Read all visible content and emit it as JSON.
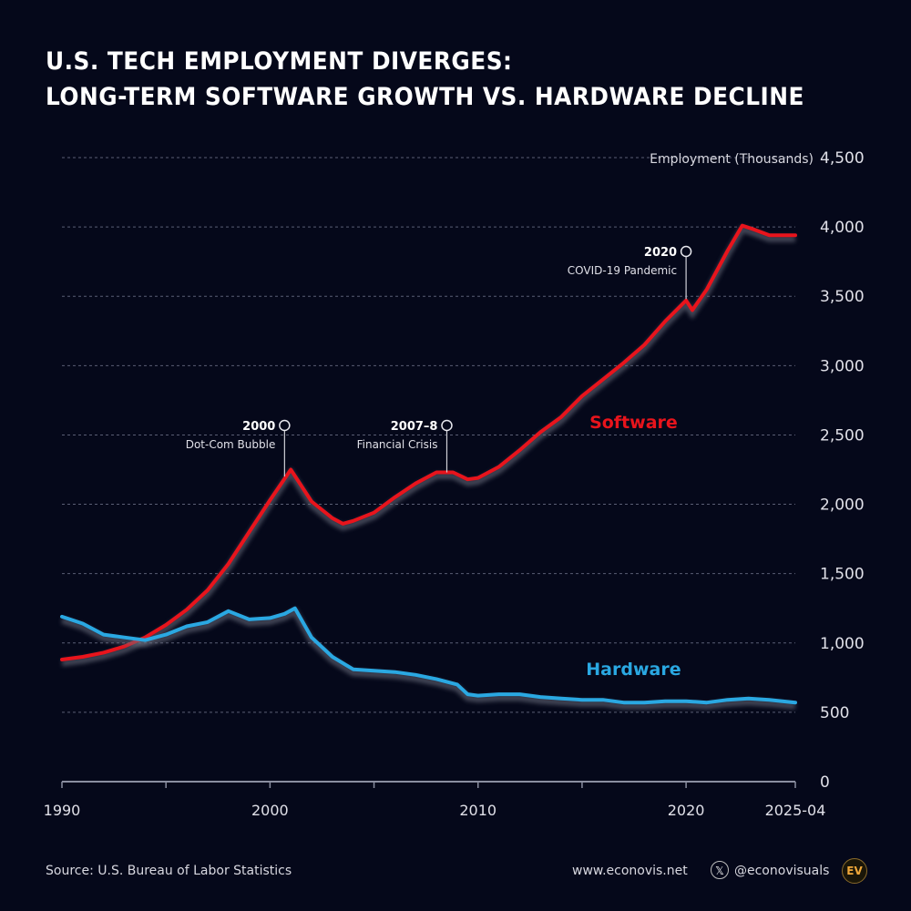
{
  "title_lines": [
    "U.S. TECH EMPLOYMENT DIVERGES:",
    "LONG-TERM SOFTWARE GROWTH VS. HARDWARE DECLINE"
  ],
  "footer": {
    "source": "Source: U.S. Bureau of Labor Statistics",
    "website": "www.econovis.net",
    "x_handle": "@econovisuals",
    "x_icon": "x-logo-icon",
    "logo_text": "EV"
  },
  "chart_data": {
    "type": "line",
    "title": "U.S. Tech Employment Diverges: Long-Term Software Growth vs. Hardware Decline",
    "xlabel": "",
    "ylabel": "Employment (Thousands)",
    "ylim": [
      0,
      4500
    ],
    "xlim": [
      1990,
      2025.25
    ],
    "y_ticks": [
      0,
      500,
      1000,
      1500,
      2000,
      2500,
      3000,
      3500,
      4000,
      4500
    ],
    "y_tick_labels": [
      "0",
      "500",
      "1,000",
      "1,500",
      "2,000",
      "2,500",
      "3,000",
      "3,500",
      "4,000",
      "4,500"
    ],
    "x_ticks": [
      1990,
      1995,
      2000,
      2005,
      2010,
      2015,
      2020,
      2025.25
    ],
    "x_tick_labels": [
      {
        "x": 1990,
        "label": "1990"
      },
      {
        "x": 2000,
        "label": "2000"
      },
      {
        "x": 2010,
        "label": "2010"
      },
      {
        "x": 2020,
        "label": "2020"
      },
      {
        "x": 2025.25,
        "label": "2025-04"
      }
    ],
    "grid": true,
    "series": [
      {
        "name": "Software",
        "color": "#e8141c",
        "points": [
          [
            1990,
            880
          ],
          [
            1991,
            900
          ],
          [
            1992,
            930
          ],
          [
            1993,
            975
          ],
          [
            1994,
            1040
          ],
          [
            1995,
            1130
          ],
          [
            1996,
            1240
          ],
          [
            1997,
            1380
          ],
          [
            1998,
            1570
          ],
          [
            1999,
            1800
          ],
          [
            2000,
            2030
          ],
          [
            2001,
            2250
          ],
          [
            2002,
            2020
          ],
          [
            2003,
            1900
          ],
          [
            2003.5,
            1860
          ],
          [
            2004,
            1880
          ],
          [
            2005,
            1940
          ],
          [
            2006,
            2050
          ],
          [
            2007,
            2150
          ],
          [
            2008,
            2230
          ],
          [
            2008.8,
            2230
          ],
          [
            2009.5,
            2180
          ],
          [
            2010,
            2190
          ],
          [
            2011,
            2270
          ],
          [
            2012,
            2390
          ],
          [
            2013,
            2520
          ],
          [
            2014,
            2630
          ],
          [
            2015,
            2780
          ],
          [
            2016,
            2900
          ],
          [
            2017,
            3020
          ],
          [
            2018,
            3150
          ],
          [
            2019,
            3320
          ],
          [
            2020,
            3470
          ],
          [
            2020.3,
            3400
          ],
          [
            2021,
            3550
          ],
          [
            2022,
            3830
          ],
          [
            2022.7,
            4010
          ],
          [
            2023.3,
            3980
          ],
          [
            2024,
            3940
          ],
          [
            2025.25,
            3940
          ]
        ]
      },
      {
        "name": "Hardware",
        "color": "#2aa8e2",
        "points": [
          [
            1990,
            1190
          ],
          [
            1991,
            1140
          ],
          [
            1992,
            1060
          ],
          [
            1993,
            1040
          ],
          [
            1994,
            1020
          ],
          [
            1995,
            1060
          ],
          [
            1996,
            1120
          ],
          [
            1997,
            1150
          ],
          [
            1998,
            1230
          ],
          [
            1999,
            1170
          ],
          [
            2000,
            1180
          ],
          [
            2000.7,
            1210
          ],
          [
            2001.2,
            1250
          ],
          [
            2002,
            1040
          ],
          [
            2003,
            900
          ],
          [
            2004,
            810
          ],
          [
            2005,
            800
          ],
          [
            2006,
            790
          ],
          [
            2007,
            770
          ],
          [
            2008,
            740
          ],
          [
            2009,
            700
          ],
          [
            2009.5,
            630
          ],
          [
            2010,
            620
          ],
          [
            2011,
            630
          ],
          [
            2012,
            630
          ],
          [
            2013,
            610
          ],
          [
            2014,
            600
          ],
          [
            2015,
            590
          ],
          [
            2016,
            590
          ],
          [
            2017,
            570
          ],
          [
            2018,
            570
          ],
          [
            2019,
            580
          ],
          [
            2020,
            580
          ],
          [
            2021,
            570
          ],
          [
            2022,
            590
          ],
          [
            2023,
            600
          ],
          [
            2024,
            590
          ],
          [
            2025.25,
            570
          ]
        ]
      }
    ],
    "series_labels": [
      {
        "name": "Software",
        "x": 2018,
        "y": 2600
      },
      {
        "name": "Hardware",
        "x": 2018,
        "y": 820
      }
    ],
    "annotations": [
      {
        "x": 2000.7,
        "y_end": 2200,
        "year": "2000",
        "text": "Dot-Com Bubble"
      },
      {
        "x": 2008.5,
        "y_end": 2230,
        "year": "2007–8",
        "text": "Financial Crisis"
      },
      {
        "x": 2020,
        "y_end": 3480,
        "year": "2020",
        "text": "COVID-19 Pandemic"
      }
    ]
  }
}
